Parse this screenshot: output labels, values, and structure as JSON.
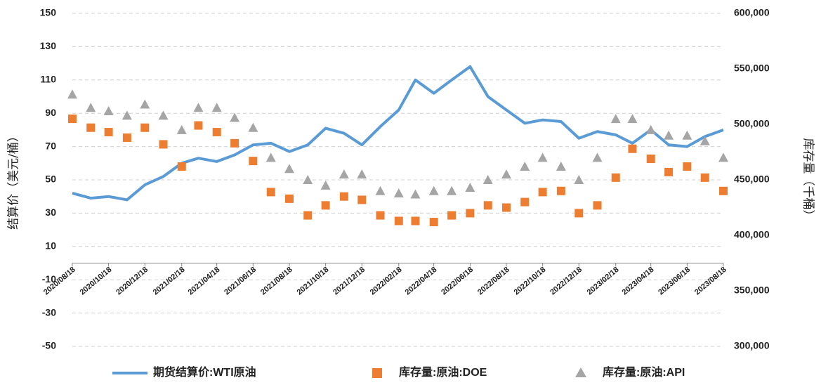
{
  "chart_data": {
    "type": "line",
    "y_label": "结算价（美元/桶）",
    "y2_label": "库存量（千桶）",
    "x": [
      "2020/08/18",
      "2020/09/18",
      "2020/10/18",
      "2020/11/18",
      "2020/12/18",
      "2021/01/18",
      "2021/02/18",
      "2021/03/18",
      "2021/04/18",
      "2021/05/18",
      "2021/06/18",
      "2021/07/18",
      "2021/08/18",
      "2021/09/18",
      "2021/10/18",
      "2021/11/18",
      "2021/12/18",
      "2022/01/18",
      "2022/02/18",
      "2022/03/18",
      "2022/04/18",
      "2022/05/18",
      "2022/06/18",
      "2022/07/18",
      "2022/08/18",
      "2022/09/18",
      "2022/10/18",
      "2022/11/18",
      "2022/12/18",
      "2023/01/18",
      "2023/02/18",
      "2023/03/18",
      "2023/04/18",
      "2023/05/18",
      "2023/06/18",
      "2023/07/18",
      "2023/08/18"
    ],
    "series": [
      {
        "name": "期货结算价:WTI原油",
        "color": "#5b9bd5",
        "style": "line",
        "values": [
          42,
          39,
          40,
          38,
          47,
          52,
          60,
          63,
          61,
          65,
          71,
          72,
          67,
          71,
          81,
          78,
          71,
          82,
          92,
          110,
          102,
          110,
          118,
          100,
          92,
          84,
          86,
          85,
          75,
          79,
          77,
          72,
          80,
          71,
          70,
          76,
          80
        ]
      },
      {
        "name": "库存量:原油:DOE",
        "color": "#ed7d31",
        "style": "square",
        "axis": "y2",
        "values": [
          505000,
          497000,
          493000,
          488000,
          497000,
          482000,
          462000,
          499000,
          493000,
          483000,
          467000,
          439000,
          433000,
          418000,
          427000,
          435000,
          432000,
          418000,
          413000,
          413000,
          412000,
          418000,
          420000,
          427000,
          425000,
          430000,
          439000,
          440000,
          420000,
          427000,
          452000,
          478000,
          469000,
          457000,
          462000,
          452000,
          440000
        ]
      },
      {
        "name": "库存量:原油:API",
        "color": "#a5a5a5",
        "style": "triangle",
        "axis": "y2",
        "values": [
          527000,
          515000,
          512000,
          508000,
          518000,
          508000,
          495000,
          515000,
          515000,
          506000,
          497000,
          470000,
          460000,
          450000,
          445000,
          455000,
          455000,
          440000,
          438000,
          437000,
          440000,
          440000,
          443000,
          450000,
          455000,
          462000,
          470000,
          462000,
          450000,
          470000,
          505000,
          505000,
          495000,
          490000,
          490000,
          485000,
          470000
        ]
      }
    ],
    "xlim": [
      "2020/08/18",
      "2023/08/18"
    ],
    "xticks": [
      "2020/08/18",
      "2020/10/18",
      "2020/12/18",
      "2021/02/18",
      "2021/04/18",
      "2021/06/18",
      "2021/08/18",
      "2021/10/18",
      "2021/12/18",
      "2022/02/18",
      "2022/04/18",
      "2022/06/18",
      "2022/08/18",
      "2022/10/18",
      "2022/12/18",
      "2023/02/18",
      "2023/04/18",
      "2023/06/18",
      "2023/08/18"
    ],
    "ylim": [
      -50,
      150
    ],
    "yticks": [
      150,
      130,
      110,
      90,
      70,
      50,
      30,
      10,
      -10,
      -30,
      -50
    ],
    "y2lim": [
      300000,
      600000
    ],
    "y2ticks": [
      {
        "value": 600000,
        "label": "600,000"
      },
      {
        "value": 550000,
        "label": "550,000"
      },
      {
        "value": 500000,
        "label": "500,000"
      },
      {
        "value": 450000,
        "label": "450,000"
      },
      {
        "value": 400000,
        "label": "400,000"
      },
      {
        "value": 350000,
        "label": "350,000"
      },
      {
        "value": 300000,
        "label": "300,000"
      }
    ],
    "grid": true,
    "legend": "bottom"
  }
}
